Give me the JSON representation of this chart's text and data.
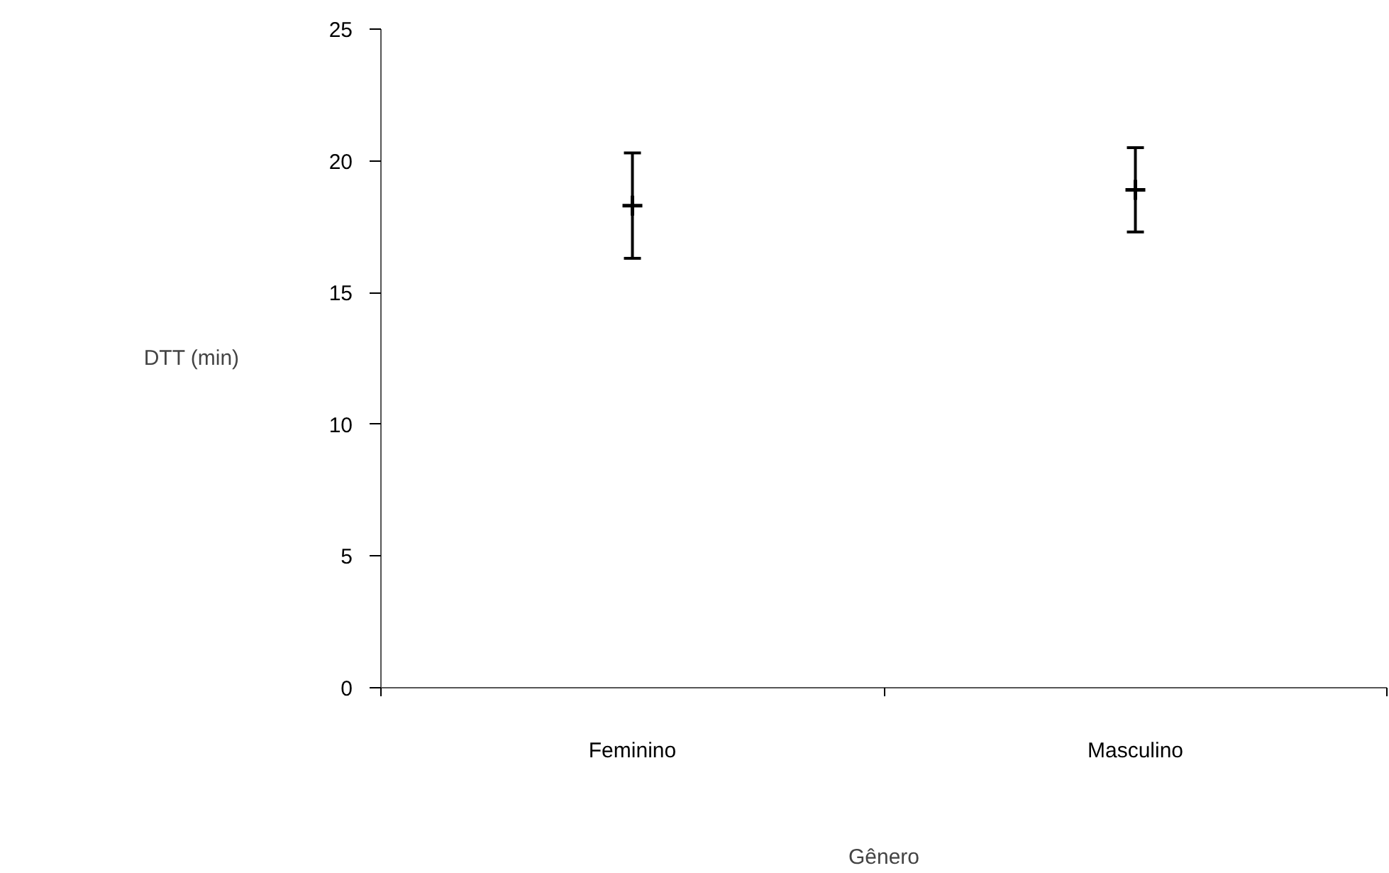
{
  "chart_data": {
    "type": "scatter",
    "xlabel": "Gênero",
    "ylabel": "DTT (min)",
    "categories": [
      "Feminino",
      "Masculino"
    ],
    "values": [
      18.3,
      18.9
    ],
    "errors": [
      2.0,
      1.6
    ],
    "color": "#000000",
    "marker": "cross",
    "ylim": [
      0,
      25
    ],
    "yticks": [
      0,
      5,
      10,
      15,
      20,
      25
    ],
    "grid": false
  }
}
